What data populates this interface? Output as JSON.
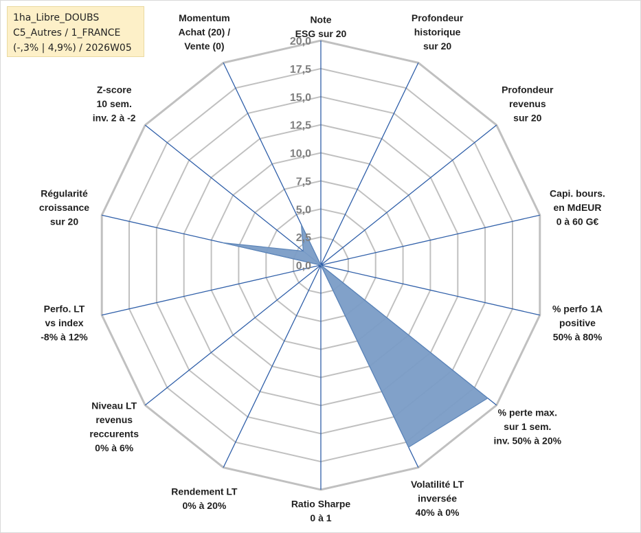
{
  "info_box": {
    "line1": "1ha_Libre_DOUBS",
    "line2": "C5_Autres / 1_FRANCE",
    "line3": "(-,3% | 4,9%) / 2026W05"
  },
  "chart_data": {
    "type": "radar",
    "rmin": 0,
    "rmax": 20,
    "ticks": [
      "0,0",
      "2,5",
      "5,0",
      "7,5",
      "10,0",
      "12,5",
      "15,0",
      "17,5",
      "20,0"
    ],
    "axes": [
      {
        "label": [
          "Note",
          "ESG sur 20"
        ],
        "value": 0
      },
      {
        "label": [
          "Profondeur",
          "historique",
          "sur 20"
        ],
        "value": 0
      },
      {
        "label": [
          "Profondeur",
          "revenus",
          "sur 20"
        ],
        "value": 0
      },
      {
        "label": [
          "Capi. bours.",
          "en MdEUR",
          "0 à 60 G€"
        ],
        "value": 0
      },
      {
        "label": [
          "% perfo 1A",
          "positive",
          "50% à 80%"
        ],
        "value": 0
      },
      {
        "label": [
          "% perte max.",
          "sur 1 sem.",
          "inv. 50% à 20%"
        ],
        "value": 19
      },
      {
        "label": [
          "Volatilité LT",
          "inversée",
          "40% à 0%"
        ],
        "value": 18
      },
      {
        "label": [
          "Ratio Sharpe",
          "0 à 1"
        ],
        "value": 0
      },
      {
        "label": [
          "Rendement LT",
          "0% à 20%"
        ],
        "value": 0
      },
      {
        "label": [
          "Niveau LT",
          "revenus",
          "reccurents",
          "0% à 6%"
        ],
        "value": 0
      },
      {
        "label": [
          "Perfo. LT",
          "vs index",
          "-8% à 12%"
        ],
        "value": 0
      },
      {
        "label": [
          "Régularité",
          "croissance",
          "sur 20"
        ],
        "value": 9
      },
      {
        "label": [
          "Z-score",
          "10 sem.",
          "inv. 2 à -2"
        ],
        "value": 2
      },
      {
        "label": [
          "Momentum",
          "Achat (20) /",
          "Vente (0)"
        ],
        "value": 4
      }
    ],
    "grid": true,
    "colors": {
      "fill": "#7a9cc6",
      "line": "#5b84b8",
      "spoke": "#2e5ea8",
      "grid": "#c0c0c0"
    }
  }
}
